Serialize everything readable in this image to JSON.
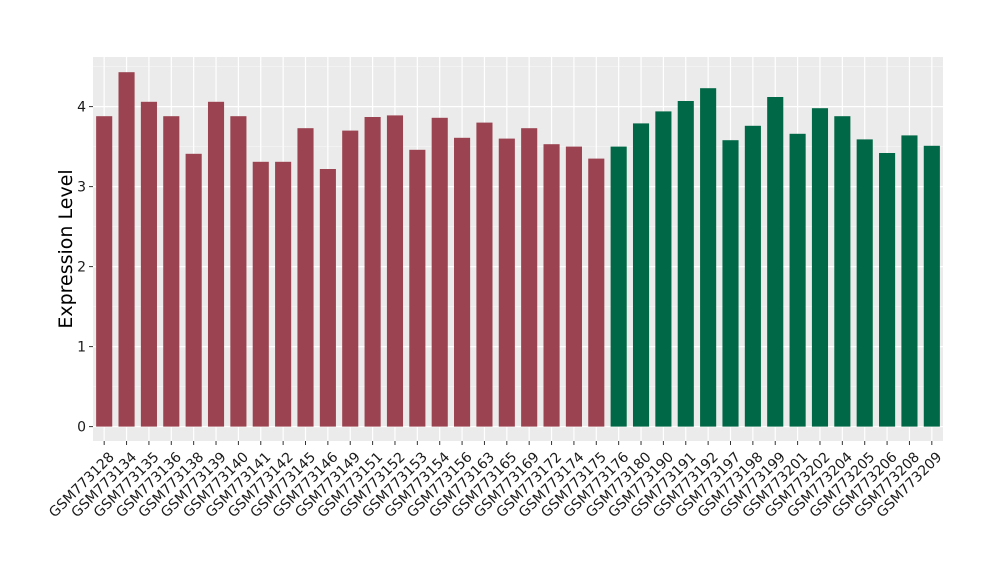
{
  "chart_data": {
    "type": "bar",
    "ylabel": "Expression Level",
    "xlabel": "",
    "ylim": [
      -0.18,
      4.62
    ],
    "yticks": [
      0,
      1,
      2,
      3,
      4
    ],
    "grid": true,
    "background": "#ebebeb",
    "colors": {
      "group1": "#9b4350",
      "group2": "#006846"
    },
    "categories": [
      "GSM773128",
      "GSM773134",
      "GSM773135",
      "GSM773136",
      "GSM773138",
      "GSM773139",
      "GSM773140",
      "GSM773141",
      "GSM773142",
      "GSM773145",
      "GSM773146",
      "GSM773149",
      "GSM773151",
      "GSM773152",
      "GSM773153",
      "GSM773154",
      "GSM773156",
      "GSM773163",
      "GSM773165",
      "GSM773169",
      "GSM773172",
      "GSM773174",
      "GSM773175",
      "GSM773176",
      "GSM773180",
      "GSM773190",
      "GSM773191",
      "GSM773192",
      "GSM773197",
      "GSM773198",
      "GSM773199",
      "GSM773201",
      "GSM773202",
      "GSM773204",
      "GSM773205",
      "GSM773206",
      "GSM773208",
      "GSM773209"
    ],
    "values": [
      3.88,
      4.43,
      4.06,
      3.88,
      3.41,
      4.06,
      3.88,
      3.31,
      3.31,
      3.73,
      3.22,
      3.7,
      3.87,
      3.89,
      3.46,
      3.86,
      3.61,
      3.8,
      3.6,
      3.73,
      3.53,
      3.5,
      3.35,
      3.5,
      3.79,
      3.94,
      4.07,
      4.23,
      3.58,
      3.76,
      4.12,
      3.66,
      3.98,
      3.88,
      3.59,
      3.42,
      3.64,
      3.51
    ],
    "groups": [
      1,
      1,
      1,
      1,
      1,
      1,
      1,
      1,
      1,
      1,
      1,
      1,
      1,
      1,
      1,
      1,
      1,
      1,
      1,
      1,
      1,
      1,
      1,
      2,
      2,
      2,
      2,
      2,
      2,
      2,
      2,
      2,
      2,
      2,
      2,
      2,
      2,
      2
    ]
  }
}
